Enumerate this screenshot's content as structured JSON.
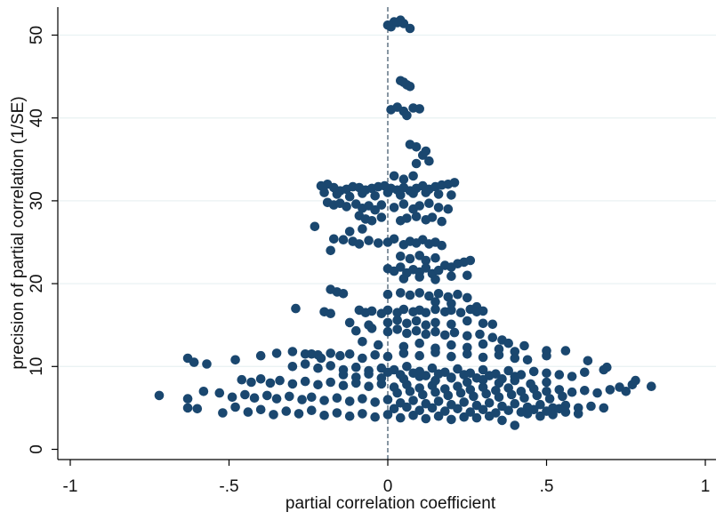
{
  "chart_data": {
    "type": "scatter",
    "title": "",
    "xlabel": "partial correlation coefficient",
    "ylabel": "precision of partial correlation (1/SE)",
    "xlim": [
      -1,
      1
    ],
    "ylim": [
      0,
      52
    ],
    "xticks": [
      {
        "value": -1,
        "label": "-1"
      },
      {
        "value": -0.5,
        "label": "-.5"
      },
      {
        "value": 0,
        "label": "0"
      },
      {
        "value": 0.5,
        "label": ".5"
      },
      {
        "value": 1,
        "label": "1"
      }
    ],
    "yticks": [
      {
        "value": 0,
        "label": "0"
      },
      {
        "value": 10,
        "label": "10"
      },
      {
        "value": 20,
        "label": "20"
      },
      {
        "value": 30,
        "label": "30"
      },
      {
        "value": 40,
        "label": "40"
      },
      {
        "value": 50,
        "label": "50"
      }
    ],
    "grid": true,
    "reference_line": {
      "x": 0,
      "style": "dashed"
    },
    "point_color": "#1a476f",
    "grid_color": "#eaf2f3",
    "points": [
      [
        0.0,
        51.2
      ],
      [
        0.02,
        51.6
      ],
      [
        0.04,
        51.8
      ],
      [
        0.05,
        51.4
      ],
      [
        0.07,
        50.8
      ],
      [
        0.01,
        51.0
      ],
      [
        0.03,
        51.5
      ],
      [
        0.04,
        44.5
      ],
      [
        0.06,
        44.0
      ],
      [
        0.07,
        43.8
      ],
      [
        0.05,
        44.3
      ],
      [
        0.01,
        41.0
      ],
      [
        0.03,
        41.3
      ],
      [
        0.05,
        40.8
      ],
      [
        0.08,
        41.2
      ],
      [
        0.1,
        41.1
      ],
      [
        0.06,
        40.3
      ],
      [
        0.07,
        36.8
      ],
      [
        0.09,
        36.5
      ],
      [
        0.11,
        35.5
      ],
      [
        0.13,
        34.8
      ],
      [
        0.09,
        34.5
      ],
      [
        0.12,
        36.0
      ],
      [
        0.02,
        33.0
      ],
      [
        0.05,
        32.6
      ],
      [
        0.08,
        33.0
      ],
      [
        -0.21,
        31.8
      ],
      [
        -0.19,
        32.0
      ],
      [
        -0.17,
        31.6
      ],
      [
        -0.15,
        31.2
      ],
      [
        -0.13,
        31.4
      ],
      [
        -0.11,
        31.7
      ],
      [
        -0.09,
        31.6
      ],
      [
        -0.07,
        31.3
      ],
      [
        -0.05,
        31.5
      ],
      [
        -0.03,
        31.7
      ],
      [
        -0.01,
        31.8
      ],
      [
        0.01,
        31.5
      ],
      [
        0.03,
        31.3
      ],
      [
        0.05,
        31.6
      ],
      [
        0.07,
        31.2
      ],
      [
        0.09,
        31.5
      ],
      [
        0.11,
        31.8
      ],
      [
        0.13,
        31.4
      ],
      [
        0.15,
        31.7
      ],
      [
        0.17,
        31.9
      ],
      [
        0.19,
        32.0
      ],
      [
        0.21,
        32.2
      ],
      [
        -0.2,
        31.0
      ],
      [
        -0.16,
        30.8
      ],
      [
        -0.12,
        30.5
      ],
      [
        -0.08,
        30.9
      ],
      [
        -0.04,
        30.6
      ],
      [
        0.0,
        31.0
      ],
      [
        0.04,
        30.7
      ],
      [
        0.08,
        30.9
      ],
      [
        0.12,
        31.0
      ],
      [
        0.16,
        30.8
      ],
      [
        0.2,
        30.7
      ],
      [
        -0.19,
        29.8
      ],
      [
        -0.17,
        29.5
      ],
      [
        -0.15,
        29.7
      ],
      [
        -0.13,
        29.3
      ],
      [
        -0.1,
        29.6
      ],
      [
        -0.08,
        29.1
      ],
      [
        -0.06,
        29.4
      ],
      [
        -0.04,
        28.9
      ],
      [
        -0.02,
        29.5
      ],
      [
        0.02,
        29.2
      ],
      [
        0.05,
        29.6
      ],
      [
        0.08,
        29.0
      ],
      [
        0.1,
        29.4
      ],
      [
        0.13,
        29.7
      ],
      [
        0.16,
        29.2
      ],
      [
        0.19,
        29.0
      ],
      [
        -0.09,
        28.2
      ],
      [
        -0.07,
        27.8
      ],
      [
        -0.05,
        27.6
      ],
      [
        -0.02,
        28.0
      ],
      [
        0.04,
        27.6
      ],
      [
        0.06,
        27.9
      ],
      [
        0.09,
        28.1
      ],
      [
        0.12,
        27.7
      ],
      [
        0.14,
        28.0
      ],
      [
        0.17,
        27.5
      ],
      [
        -0.23,
        26.9
      ],
      [
        -0.12,
        26.3
      ],
      [
        -0.08,
        26.6
      ],
      [
        -0.14,
        25.3
      ],
      [
        -0.11,
        25.1
      ],
      [
        -0.09,
        24.8
      ],
      [
        -0.06,
        25.2
      ],
      [
        -0.03,
        24.9
      ],
      [
        0.0,
        25.0
      ],
      [
        0.02,
        25.4
      ],
      [
        0.05,
        24.7
      ],
      [
        0.07,
        25.1
      ],
      [
        0.09,
        24.9
      ],
      [
        0.11,
        25.3
      ],
      [
        0.13,
        24.8
      ],
      [
        0.15,
        25.0
      ],
      [
        0.17,
        24.6
      ],
      [
        -0.17,
        25.4
      ],
      [
        -0.18,
        24.0
      ],
      [
        0.04,
        23.3
      ],
      [
        0.07,
        23.0
      ],
      [
        0.1,
        23.4
      ],
      [
        0.12,
        22.8
      ],
      [
        0.15,
        23.1
      ],
      [
        0.0,
        21.8
      ],
      [
        0.02,
        21.5
      ],
      [
        0.04,
        22.0
      ],
      [
        0.06,
        21.3
      ],
      [
        0.08,
        21.7
      ],
      [
        0.1,
        21.4
      ],
      [
        0.12,
        21.9
      ],
      [
        0.14,
        21.2
      ],
      [
        0.16,
        21.6
      ],
      [
        0.18,
        22.2
      ],
      [
        0.2,
        22.0
      ],
      [
        0.22,
        22.4
      ],
      [
        0.24,
        22.6
      ],
      [
        0.26,
        22.8
      ],
      [
        0.1,
        20.8
      ],
      [
        0.15,
        20.5
      ],
      [
        0.2,
        20.9
      ],
      [
        0.25,
        21.0
      ],
      [
        0.05,
        20.6
      ],
      [
        -0.18,
        19.3
      ],
      [
        -0.16,
        19.0
      ],
      [
        -0.14,
        18.8
      ],
      [
        0.0,
        18.7
      ],
      [
        0.04,
        18.9
      ],
      [
        0.07,
        18.6
      ],
      [
        0.1,
        18.9
      ],
      [
        0.13,
        18.5
      ],
      [
        0.16,
        18.8
      ],
      [
        0.19,
        18.4
      ],
      [
        0.22,
        18.7
      ],
      [
        0.25,
        18.3
      ],
      [
        0.15,
        17.8
      ],
      [
        0.2,
        17.6
      ],
      [
        0.28,
        17.2
      ],
      [
        -0.29,
        17.0
      ],
      [
        -0.2,
        16.6
      ],
      [
        -0.18,
        16.4
      ],
      [
        -0.09,
        16.8
      ],
      [
        -0.07,
        16.5
      ],
      [
        -0.05,
        16.7
      ],
      [
        -0.02,
        16.4
      ],
      [
        0.0,
        16.8
      ],
      [
        0.03,
        16.5
      ],
      [
        0.05,
        16.9
      ],
      [
        0.08,
        16.6
      ],
      [
        0.1,
        16.8
      ],
      [
        0.12,
        16.5
      ],
      [
        0.15,
        16.9
      ],
      [
        0.18,
        16.6
      ],
      [
        0.2,
        16.8
      ],
      [
        0.23,
        16.5
      ],
      [
        0.26,
        16.9
      ],
      [
        0.28,
        16.6
      ],
      [
        0.3,
        16.7
      ],
      [
        0.0,
        15.3
      ],
      [
        0.03,
        15.6
      ],
      [
        0.06,
        15.2
      ],
      [
        0.09,
        15.5
      ],
      [
        0.12,
        15.0
      ],
      [
        0.15,
        15.3
      ],
      [
        0.2,
        15.1
      ],
      [
        0.25,
        15.5
      ],
      [
        0.3,
        15.2
      ],
      [
        0.33,
        15.1
      ],
      [
        -0.12,
        15.3
      ],
      [
        -0.06,
        15.0
      ],
      [
        -0.1,
        14.3
      ],
      [
        -0.05,
        14.6
      ],
      [
        0.0,
        14.2
      ],
      [
        0.03,
        14.5
      ],
      [
        0.06,
        14.0
      ],
      [
        0.09,
        14.3
      ],
      [
        0.12,
        13.9
      ],
      [
        0.15,
        14.2
      ],
      [
        0.18,
        13.8
      ],
      [
        0.21,
        14.1
      ],
      [
        0.25,
        13.7
      ],
      [
        0.29,
        13.9
      ],
      [
        0.33,
        13.5
      ],
      [
        0.36,
        13.2
      ],
      [
        0.38,
        12.8
      ],
      [
        -0.08,
        13.0
      ],
      [
        -0.03,
        12.6
      ],
      [
        0.05,
        12.4
      ],
      [
        0.1,
        12.8
      ],
      [
        0.15,
        12.2
      ],
      [
        0.2,
        12.6
      ],
      [
        0.25,
        12.3
      ],
      [
        0.3,
        12.7
      ],
      [
        0.35,
        12.1
      ],
      [
        0.4,
        11.8
      ],
      [
        0.43,
        12.5
      ],
      [
        0.5,
        11.9
      ],
      [
        0.56,
        11.9
      ],
      [
        -0.63,
        11.0
      ],
      [
        -0.61,
        10.5
      ],
      [
        -0.57,
        10.3
      ],
      [
        -0.48,
        10.8
      ],
      [
        -0.4,
        11.3
      ],
      [
        -0.35,
        11.6
      ],
      [
        -0.3,
        11.8
      ],
      [
        -0.26,
        11.5
      ],
      [
        -0.24,
        11.5
      ],
      [
        -0.22,
        11.4
      ],
      [
        -0.21,
        11.0
      ],
      [
        -0.18,
        11.6
      ],
      [
        -0.15,
        11.3
      ],
      [
        -0.12,
        11.5
      ],
      [
        -0.08,
        11.0
      ],
      [
        -0.04,
        11.4
      ],
      [
        0.0,
        11.2
      ],
      [
        0.05,
        11.6
      ],
      [
        0.1,
        11.3
      ],
      [
        0.15,
        11.7
      ],
      [
        0.2,
        11.2
      ],
      [
        0.25,
        11.5
      ],
      [
        0.3,
        11.1
      ],
      [
        0.35,
        11.4
      ],
      [
        0.4,
        11.0
      ],
      [
        0.44,
        10.8
      ],
      [
        0.5,
        11.3
      ],
      [
        0.63,
        10.7
      ],
      [
        -0.3,
        10.0
      ],
      [
        -0.26,
        10.3
      ],
      [
        -0.22,
        9.8
      ],
      [
        -0.18,
        10.1
      ],
      [
        -0.14,
        9.6
      ],
      [
        -0.1,
        9.9
      ],
      [
        -0.06,
        9.5
      ],
      [
        -0.02,
        9.8
      ],
      [
        0.02,
        9.6
      ],
      [
        0.06,
        10.0
      ],
      [
        0.1,
        9.4
      ],
      [
        0.14,
        9.8
      ],
      [
        0.18,
        9.3
      ],
      [
        0.22,
        9.7
      ],
      [
        0.26,
        9.2
      ],
      [
        0.3,
        9.6
      ],
      [
        0.34,
        9.1
      ],
      [
        0.38,
        9.5
      ],
      [
        0.42,
        9.0
      ],
      [
        0.46,
        9.4
      ],
      [
        0.5,
        9.2
      ],
      [
        0.54,
        9.0
      ],
      [
        0.58,
        8.8
      ],
      [
        0.62,
        9.3
      ],
      [
        0.68,
        9.6
      ],
      [
        0.69,
        9.9
      ],
      [
        -0.46,
        8.4
      ],
      [
        -0.43,
        8.1
      ],
      [
        -0.4,
        8.5
      ],
      [
        -0.37,
        8.0
      ],
      [
        -0.34,
        8.3
      ],
      [
        -0.3,
        7.9
      ],
      [
        -0.26,
        8.2
      ],
      [
        -0.22,
        7.8
      ],
      [
        -0.18,
        8.1
      ],
      [
        -0.14,
        7.7
      ],
      [
        -0.1,
        8.0
      ],
      [
        -0.06,
        7.6
      ],
      [
        -0.02,
        7.9
      ],
      [
        0.02,
        7.5
      ],
      [
        0.06,
        7.8
      ],
      [
        0.1,
        7.4
      ],
      [
        0.14,
        7.7
      ],
      [
        0.18,
        7.3
      ],
      [
        0.22,
        7.6
      ],
      [
        0.26,
        7.2
      ],
      [
        0.3,
        7.5
      ],
      [
        0.34,
        7.1
      ],
      [
        0.38,
        7.4
      ],
      [
        0.42,
        7.0
      ],
      [
        0.46,
        7.3
      ],
      [
        0.5,
        7.0
      ],
      [
        0.54,
        7.2
      ],
      [
        0.58,
        6.9
      ],
      [
        0.62,
        7.1
      ],
      [
        0.66,
        6.8
      ],
      [
        0.7,
        7.2
      ],
      [
        0.73,
        7.5
      ],
      [
        0.75,
        7.0
      ],
      [
        0.78,
        8.3
      ],
      [
        0.77,
        7.8
      ],
      [
        0.83,
        7.6
      ],
      [
        -0.72,
        6.5
      ],
      [
        -0.63,
        6.1
      ],
      [
        -0.58,
        7.0
      ],
      [
        -0.53,
        6.8
      ],
      [
        -0.49,
        6.3
      ],
      [
        -0.45,
        6.6
      ],
      [
        -0.42,
        6.2
      ],
      [
        -0.38,
        6.5
      ],
      [
        -0.35,
        6.1
      ],
      [
        -0.31,
        6.4
      ],
      [
        -0.27,
        6.0
      ],
      [
        -0.24,
        6.3
      ],
      [
        -0.2,
        5.9
      ],
      [
        -0.16,
        6.2
      ],
      [
        -0.12,
        5.8
      ],
      [
        -0.08,
        6.1
      ],
      [
        -0.04,
        5.7
      ],
      [
        0.0,
        6.0
      ],
      [
        0.04,
        5.6
      ],
      [
        0.08,
        5.9
      ],
      [
        0.12,
        5.5
      ],
      [
        0.16,
        5.8
      ],
      [
        0.2,
        5.4
      ],
      [
        0.24,
        5.7
      ],
      [
        0.28,
        5.3
      ],
      [
        0.32,
        5.6
      ],
      [
        0.36,
        5.2
      ],
      [
        0.4,
        5.5
      ],
      [
        0.44,
        5.1
      ],
      [
        0.48,
        5.4
      ],
      [
        0.52,
        5.0
      ],
      [
        0.56,
        5.3
      ],
      [
        0.6,
        5.0
      ],
      [
        0.64,
        5.2
      ],
      [
        0.68,
        5.0
      ],
      [
        -0.63,
        5.0
      ],
      [
        -0.6,
        4.9
      ],
      [
        -0.52,
        4.4
      ],
      [
        -0.48,
        5.1
      ],
      [
        -0.44,
        4.5
      ],
      [
        -0.4,
        4.8
      ],
      [
        -0.36,
        4.2
      ],
      [
        -0.32,
        4.6
      ],
      [
        -0.28,
        4.3
      ],
      [
        -0.24,
        4.7
      ],
      [
        -0.2,
        4.1
      ],
      [
        -0.16,
        4.4
      ],
      [
        -0.12,
        4.0
      ],
      [
        -0.08,
        4.3
      ],
      [
        -0.04,
        3.9
      ],
      [
        0.0,
        4.2
      ],
      [
        0.04,
        3.8
      ],
      [
        0.08,
        4.1
      ],
      [
        0.12,
        3.7
      ],
      [
        0.16,
        4.0
      ],
      [
        0.2,
        3.6
      ],
      [
        0.24,
        3.9
      ],
      [
        0.28,
        3.8
      ],
      [
        0.32,
        4.0
      ],
      [
        0.36,
        3.5
      ],
      [
        0.4,
        2.9
      ],
      [
        0.44,
        4.3
      ],
      [
        0.48,
        4.0
      ],
      [
        0.52,
        4.2
      ],
      [
        0.56,
        4.5
      ],
      [
        0.6,
        4.3
      ],
      [
        0.05,
        8.5
      ],
      [
        0.1,
        8.8
      ],
      [
        0.15,
        8.3
      ],
      [
        0.2,
        8.6
      ],
      [
        0.25,
        8.1
      ],
      [
        0.3,
        8.4
      ],
      [
        0.35,
        8.0
      ],
      [
        0.4,
        8.3
      ],
      [
        0.45,
        7.9
      ],
      [
        0.5,
        8.1
      ],
      [
        0.03,
        6.8
      ],
      [
        0.07,
        7.0
      ],
      [
        0.11,
        6.6
      ],
      [
        0.15,
        6.9
      ],
      [
        0.19,
        6.5
      ],
      [
        0.23,
        6.8
      ],
      [
        0.27,
        6.4
      ],
      [
        0.31,
        6.7
      ],
      [
        0.35,
        6.3
      ],
      [
        0.39,
        6.6
      ],
      [
        0.43,
        6.2
      ],
      [
        0.47,
        6.5
      ],
      [
        0.51,
        6.1
      ],
      [
        0.55,
        6.4
      ],
      [
        0.02,
        4.9
      ],
      [
        0.06,
        5.1
      ],
      [
        0.1,
        4.7
      ],
      [
        0.14,
        5.0
      ],
      [
        0.18,
        4.6
      ],
      [
        0.22,
        4.9
      ],
      [
        0.26,
        4.5
      ],
      [
        0.3,
        4.8
      ],
      [
        0.34,
        4.4
      ],
      [
        0.38,
        4.7
      ],
      [
        0.42,
        4.5
      ],
      [
        0.46,
        4.8
      ],
      [
        0.5,
        4.6
      ],
      [
        0.54,
        4.9
      ],
      [
        -0.14,
        9.0
      ],
      [
        -0.1,
        8.7
      ],
      [
        -0.06,
        9.1
      ],
      [
        -0.02,
        8.6
      ],
      [
        0.0,
        9.3
      ],
      [
        0.04,
        9.0
      ],
      [
        0.08,
        9.2
      ],
      [
        0.12,
        8.9
      ],
      [
        0.16,
        9.1
      ],
      [
        0.2,
        8.7
      ],
      [
        0.24,
        9.0
      ],
      [
        0.28,
        8.6
      ],
      [
        0.32,
        8.9
      ],
      [
        0.36,
        8.5
      ],
      [
        0.4,
        8.8
      ]
    ]
  }
}
